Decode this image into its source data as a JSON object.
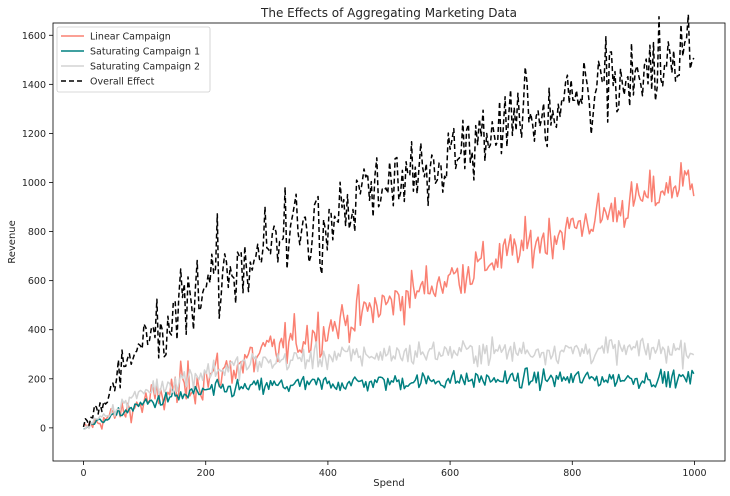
{
  "chart_data": {
    "type": "line",
    "title": "The Effects of Aggregating Marketing Data",
    "xlabel": "Spend",
    "ylabel": "Revenue",
    "xlim": [
      -50,
      1050
    ],
    "ylim": [
      -135,
      1650
    ],
    "xticks": [
      0,
      200,
      400,
      600,
      800,
      1000
    ],
    "yticks": [
      0,
      200,
      400,
      600,
      800,
      1000,
      1200,
      1400,
      1600
    ],
    "grid": false,
    "legend_position": "top-left",
    "x": {
      "start": 0,
      "end": 1000,
      "step": 3
    },
    "series": [
      {
        "name": "Linear Campaign",
        "color": "#fa8072",
        "style": "solid",
        "trend": "linear",
        "endpoints": [
          [
            0,
            0
          ],
          [
            1000,
            1020
          ]
        ],
        "noise_sd": 45
      },
      {
        "name": "Saturating Campaign 1",
        "color": "#008080",
        "style": "solid",
        "trend": "saturating",
        "values_at": [
          [
            0,
            0
          ],
          [
            100,
            100
          ],
          [
            200,
            150
          ],
          [
            300,
            170
          ],
          [
            400,
            180
          ],
          [
            600,
            195
          ],
          [
            800,
            200
          ],
          [
            1000,
            200
          ]
        ],
        "noise_sd": 18
      },
      {
        "name": "Saturating Campaign 2",
        "color": "#d3d3d3",
        "style": "solid",
        "trend": "saturating",
        "values_at": [
          [
            0,
            0
          ],
          [
            100,
            150
          ],
          [
            200,
            230
          ],
          [
            300,
            270
          ],
          [
            400,
            290
          ],
          [
            600,
            310
          ],
          [
            800,
            315
          ],
          [
            1000,
            320
          ]
        ],
        "noise_sd": 25
      },
      {
        "name": "Overall Effect",
        "color": "#000000",
        "style": "dashed",
        "trend": "sum of the three campaigns",
        "noise_sd": 60
      }
    ]
  }
}
